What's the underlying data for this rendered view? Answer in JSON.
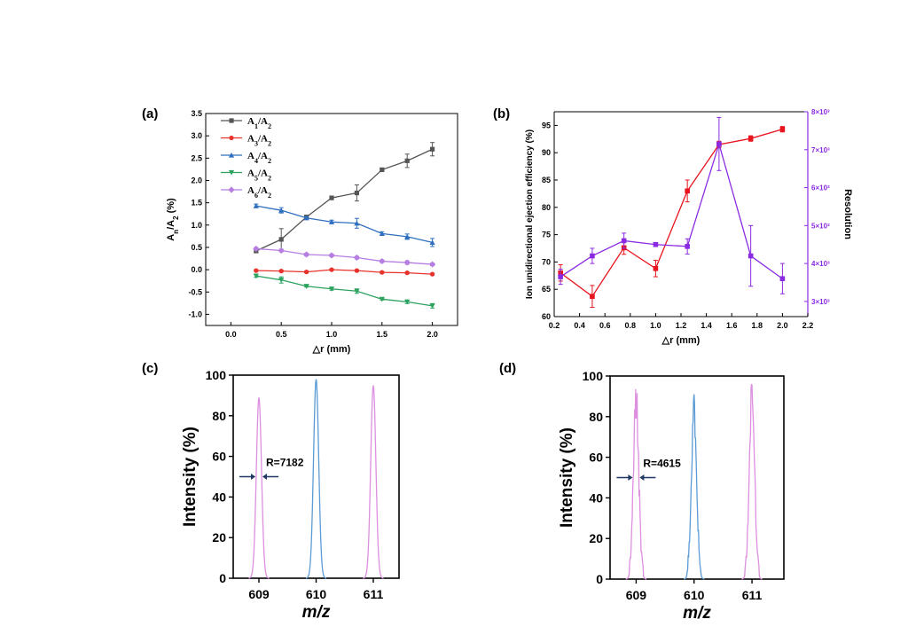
{
  "panels": {
    "a": "(a)",
    "b": "(b)",
    "c": "(c)",
    "d": "(d)"
  },
  "chart_data": [
    {
      "id": "a",
      "type": "line",
      "xlabel": "△r (mm)",
      "ylabel": "An/A2 (%)",
      "xlim": [
        -0.25,
        2.25
      ],
      "ylim": [
        -1.25,
        3.5
      ],
      "xticks": [
        0.0,
        0.5,
        1.0,
        1.5,
        2.0
      ],
      "yticks": [
        -1.0,
        -0.5,
        0.0,
        0.5,
        1.0,
        1.5,
        2.0,
        2.5,
        3.0,
        3.5
      ],
      "x": [
        0.25,
        0.5,
        0.75,
        1.0,
        1.25,
        1.5,
        1.75,
        2.0
      ],
      "legend_position": "top-right",
      "series": [
        {
          "name": "A1/A2",
          "legend_main": "A",
          "legend_sub": "1",
          "legend_tail": "/A",
          "legend_sub2": "2",
          "color": "#555555",
          "marker": "square",
          "values": [
            0.42,
            0.68,
            1.18,
            1.61,
            1.72,
            2.24,
            2.44,
            2.7
          ],
          "errors": [
            0.04,
            0.24,
            0.04,
            0.04,
            0.18,
            0.03,
            0.15,
            0.15
          ]
        },
        {
          "name": "A3/A2",
          "legend_main": "A",
          "legend_sub": "3",
          "legend_tail": "/A",
          "legend_sub2": "2",
          "color": "#e8322c",
          "marker": "circle",
          "values": [
            -0.02,
            -0.03,
            -0.05,
            0.0,
            -0.02,
            -0.06,
            -0.07,
            -0.1
          ],
          "errors": [
            0.02,
            0.02,
            0.02,
            0.02,
            0.02,
            0.02,
            0.02,
            0.02
          ]
        },
        {
          "name": "A4/A2",
          "legend_main": "A",
          "legend_sub": "4",
          "legend_tail": "/A",
          "legend_sub2": "2",
          "color": "#2f6fbf",
          "marker": "triangle-up",
          "values": [
            1.43,
            1.33,
            1.16,
            1.07,
            1.04,
            0.81,
            0.74,
            0.61
          ],
          "errors": [
            0.04,
            0.06,
            0.03,
            0.04,
            0.11,
            0.04,
            0.06,
            0.09
          ]
        },
        {
          "name": "A5/A2",
          "legend_main": "A",
          "legend_sub": "5",
          "legend_tail": "/A",
          "legend_sub2": "2",
          "color": "#2ca25f",
          "marker": "triangle-down",
          "values": [
            -0.14,
            -0.23,
            -0.37,
            -0.43,
            -0.48,
            -0.66,
            -0.72,
            -0.81
          ],
          "errors": [
            0.03,
            0.07,
            0.02,
            0.03,
            0.05,
            0.02,
            0.04,
            0.05
          ]
        },
        {
          "name": "A6/A2",
          "legend_main": "A",
          "legend_sub": "6",
          "legend_tail": "/A",
          "legend_sub2": "2",
          "color": "#b57ee0",
          "marker": "diamond",
          "values": [
            0.47,
            0.43,
            0.34,
            0.32,
            0.27,
            0.19,
            0.16,
            0.12
          ],
          "errors": [
            0.03,
            0.03,
            0.03,
            0.03,
            0.03,
            0.03,
            0.04,
            0.03
          ]
        }
      ]
    },
    {
      "id": "b",
      "type": "line",
      "xlabel": "△r (mm)",
      "ylabel": "Ion unidirectional ejection efficiency (%)",
      "y2label": "Resolution",
      "xlim": [
        0.2,
        2.2
      ],
      "ylim": [
        60,
        97.5
      ],
      "y2lim": [
        2.6,
        8.0
      ],
      "xticks": [
        0.2,
        0.4,
        0.6,
        0.8,
        1.0,
        1.2,
        1.4,
        1.6,
        1.8,
        2.0,
        2.2
      ],
      "yticks": [
        60,
        65,
        70,
        75,
        80,
        85,
        90,
        95
      ],
      "y2ticks": [
        3,
        4,
        5,
        6,
        7,
        8
      ],
      "y2tick_labels": [
        "3×10³",
        "4×10³",
        "5×10³",
        "6×10³",
        "7×10³",
        "8×10³"
      ],
      "x": [
        0.25,
        0.5,
        0.75,
        1.0,
        1.25,
        1.5,
        1.75,
        2.0
      ],
      "series": [
        {
          "name": "Ion unidirectional ejection efficiency",
          "axis": "left",
          "color": "#e8141e",
          "marker": "square",
          "values": [
            68.0,
            63.7,
            72.6,
            68.8,
            83.0,
            91.5,
            92.6,
            94.3
          ],
          "errors": [
            1.5,
            2.0,
            1.2,
            1.5,
            2.0,
            0.6,
            0.5,
            0.5
          ]
        },
        {
          "name": "Resolution",
          "axis": "right",
          "color": "#8a2be2",
          "marker": "square",
          "values": [
            3.65,
            4.2,
            4.6,
            4.5,
            4.45,
            7.15,
            4.2,
            3.6
          ],
          "errors": [
            0.2,
            0.2,
            0.2,
            0.05,
            0.2,
            0.7,
            0.8,
            0.4
          ]
        }
      ]
    },
    {
      "id": "c",
      "type": "line",
      "xlabel": "m/z",
      "ylabel": "Intensity (%)",
      "xlim": [
        608.55,
        611.45
      ],
      "ylim": [
        0,
        100
      ],
      "xticks": [
        609,
        610,
        611
      ],
      "yticks": [
        0,
        20,
        40,
        60,
        80,
        100
      ],
      "annotation": "R=7182",
      "peaks": [
        {
          "center": 609.0,
          "height": 89,
          "color": "#dd8fe0"
        },
        {
          "center": 610.0,
          "height": 98,
          "color": "#5b9bd5"
        },
        {
          "center": 611.0,
          "height": 95,
          "color": "#dd8fe0"
        }
      ]
    },
    {
      "id": "d",
      "type": "line",
      "xlabel": "m/z",
      "ylabel": "Intensity (%)",
      "xlim": [
        608.55,
        611.55
      ],
      "ylim": [
        0,
        100
      ],
      "xticks": [
        609,
        610,
        611
      ],
      "yticks": [
        0,
        20,
        40,
        60,
        80,
        100
      ],
      "annotation": "R=4615",
      "peaks": [
        {
          "center": 609.0,
          "height": 98,
          "color": "#dd8fe0"
        },
        {
          "center": 610.0,
          "height": 91,
          "color": "#5b9bd5"
        },
        {
          "center": 611.0,
          "height": 98,
          "color": "#dd8fe0"
        }
      ]
    }
  ]
}
